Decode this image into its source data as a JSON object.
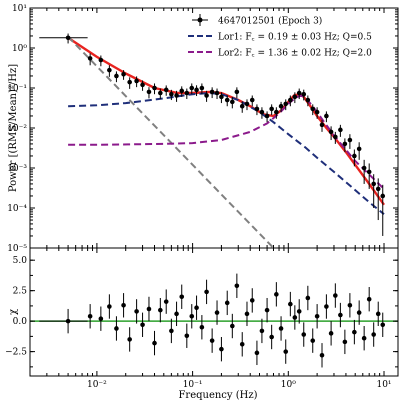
{
  "chart_data": [
    {
      "type": "scatter",
      "panel": "power spectrum",
      "xlabel": "Frequency (Hz)",
      "ylabel": "Power [(RMS/Mean)²/Hz]",
      "x_scale": "log",
      "y_scale": "log",
      "xlim": [
        0.002,
        14
      ],
      "ylim": [
        1e-05,
        10
      ],
      "x_ticks": [
        {
          "value": 0.01,
          "label": "10⁻²"
        },
        {
          "value": 0.1,
          "label": "10⁻¹"
        },
        {
          "value": 1,
          "label": "10⁰"
        },
        {
          "value": 10,
          "label": "10¹"
        }
      ],
      "y_ticks": [
        {
          "value": 10,
          "label": "10¹"
        },
        {
          "value": 1,
          "label": "10⁰"
        },
        {
          "value": 0.1,
          "label": "10⁻¹"
        },
        {
          "value": 0.01,
          "label": "10⁻²"
        },
        {
          "value": 0.001,
          "label": "10⁻³"
        },
        {
          "value": 0.0001,
          "label": "10⁻⁴"
        },
        {
          "value": 1e-05,
          "label": "10⁻⁵"
        }
      ],
      "legend": {
        "placement": "top-right",
        "entries": [
          {
            "label": "4647012501 (Epoch 3)",
            "style": "points",
            "color": "#000000"
          },
          {
            "label": "Lor1:  F꜀ = 0.19 ± 0.03 Hz;  Q=0.5",
            "style": "dashed",
            "color": "#1f2f7a"
          },
          {
            "label": "Lor2:  F꜀ = 1.36 ± 0.02 Hz;  Q=2.0",
            "style": "dashed",
            "color": "#8b1a8b"
          }
        ]
      },
      "series": [
        {
          "name": "4647012501 (Epoch 3)",
          "color": "#000000",
          "x": [
            0.005,
            0.0085,
            0.011,
            0.0135,
            0.016,
            0.019,
            0.022,
            0.026,
            0.03,
            0.035,
            0.04,
            0.046,
            0.053,
            0.06,
            0.068,
            0.077,
            0.087,
            0.098,
            0.11,
            0.125,
            0.14,
            0.16,
            0.18,
            0.2,
            0.23,
            0.26,
            0.29,
            0.33,
            0.37,
            0.42,
            0.47,
            0.53,
            0.6,
            0.67,
            0.75,
            0.84,
            0.94,
            1.05,
            1.17,
            1.3,
            1.45,
            1.6,
            1.8,
            2.0,
            2.25,
            2.5,
            2.8,
            3.1,
            3.5,
            3.9,
            4.4,
            4.9,
            5.5,
            6.2,
            7.0,
            7.8,
            8.7,
            9.7
          ],
          "y": [
            1.8,
            0.55,
            0.5,
            0.28,
            0.2,
            0.22,
            0.14,
            0.15,
            0.12,
            0.08,
            0.1,
            0.075,
            0.09,
            0.07,
            0.065,
            0.085,
            0.075,
            0.1,
            0.09,
            0.1,
            0.065,
            0.08,
            0.075,
            0.06,
            0.05,
            0.045,
            0.08,
            0.035,
            0.04,
            0.05,
            0.03,
            0.025,
            0.02,
            0.03,
            0.025,
            0.035,
            0.04,
            0.05,
            0.06,
            0.075,
            0.07,
            0.05,
            0.03,
            0.025,
            0.012,
            0.02,
            0.008,
            0.006,
            0.009,
            0.004,
            0.005,
            0.002,
            0.003,
            0.001,
            0.0008,
            0.0004,
            0.0003,
            0.0002
          ],
          "yerr": [
            0.5,
            0.18,
            0.15,
            0.09,
            0.06,
            0.06,
            0.045,
            0.045,
            0.035,
            0.025,
            0.03,
            0.022,
            0.026,
            0.02,
            0.02,
            0.025,
            0.022,
            0.03,
            0.027,
            0.03,
            0.02,
            0.024,
            0.022,
            0.018,
            0.015,
            0.014,
            0.024,
            0.011,
            0.012,
            0.015,
            0.009,
            0.008,
            0.006,
            0.009,
            0.008,
            0.01,
            0.012,
            0.015,
            0.018,
            0.022,
            0.021,
            0.015,
            0.009,
            0.008,
            0.004,
            0.006,
            0.003,
            0.002,
            0.003,
            0.0015,
            0.002,
            0.0009,
            0.0014,
            0.0006,
            0.0005,
            0.0003,
            0.00025,
            0.00018
          ],
          "xerr_first": [
            0.0025,
            0.008
          ]
        },
        {
          "name": "total model",
          "color": "#e8231f",
          "line": "solid",
          "x": [
            0.005,
            0.01,
            0.02,
            0.04,
            0.07,
            0.1,
            0.15,
            0.2,
            0.3,
            0.4,
            0.55,
            0.7,
            0.85,
            1.0,
            1.15,
            1.3,
            1.45,
            1.7,
            2.0,
            2.5,
            3.0,
            4.0,
            5.0,
            7.0,
            10.0
          ],
          "y": [
            1.8,
            0.6,
            0.23,
            0.1,
            0.075,
            0.075,
            0.08,
            0.075,
            0.05,
            0.035,
            0.022,
            0.02,
            0.028,
            0.045,
            0.065,
            0.07,
            0.06,
            0.035,
            0.02,
            0.01,
            0.006,
            0.0025,
            0.0012,
            0.0004,
            0.00012
          ]
        },
        {
          "name": "power-law component",
          "color": "#808080",
          "line": "dashed",
          "x": [
            0.005,
            0.7
          ],
          "y": [
            1.9,
            1e-05
          ]
        },
        {
          "name": "Lor1",
          "color": "#1f2f7a",
          "line": "dashed",
          "x": [
            0.005,
            0.01,
            0.02,
            0.05,
            0.1,
            0.15,
            0.2,
            0.3,
            0.5,
            0.7,
            1.0,
            1.5,
            2.0,
            3.0,
            5.0,
            7.0,
            10.0
          ],
          "y": [
            0.035,
            0.037,
            0.042,
            0.055,
            0.07,
            0.075,
            0.07,
            0.05,
            0.025,
            0.014,
            0.007,
            0.0033,
            0.0018,
            0.0008,
            0.00028,
            0.00014,
            7e-05
          ]
        },
        {
          "name": "Lor2",
          "color": "#8b1a8b",
          "line": "dashed",
          "x": [
            0.005,
            0.01,
            0.05,
            0.1,
            0.2,
            0.4,
            0.6,
            0.8,
            1.0,
            1.2,
            1.36,
            1.5,
            1.8,
            2.2,
            3.0,
            5.0,
            10.0
          ],
          "y": [
            0.0038,
            0.0038,
            0.004,
            0.0042,
            0.005,
            0.008,
            0.013,
            0.023,
            0.04,
            0.058,
            0.065,
            0.058,
            0.035,
            0.018,
            0.0065,
            0.0015,
            0.0003
          ]
        }
      ]
    },
    {
      "type": "scatter",
      "panel": "residuals",
      "xlabel": "Frequency (Hz)",
      "ylabel": "χ",
      "x_scale": "log",
      "xlim": [
        0.002,
        14
      ],
      "ylim": [
        -4.5,
        6
      ],
      "y_ticks": [
        {
          "value": 5,
          "label": "5.0"
        },
        {
          "value": 2.5,
          "label": "2.5"
        },
        {
          "value": 0,
          "label": "0.0"
        },
        {
          "value": -2.5,
          "label": "−2.5"
        }
      ],
      "zero_line": {
        "value": 0,
        "color": "#2ca02c"
      },
      "series": [
        {
          "name": "residuals",
          "color": "#000000",
          "x": [
            0.005,
            0.0085,
            0.011,
            0.0135,
            0.016,
            0.019,
            0.022,
            0.026,
            0.03,
            0.035,
            0.04,
            0.046,
            0.053,
            0.06,
            0.068,
            0.077,
            0.087,
            0.098,
            0.11,
            0.125,
            0.14,
            0.16,
            0.18,
            0.2,
            0.23,
            0.26,
            0.29,
            0.33,
            0.37,
            0.42,
            0.47,
            0.53,
            0.6,
            0.67,
            0.75,
            0.84,
            0.94,
            1.05,
            1.17,
            1.3,
            1.45,
            1.6,
            1.8,
            2.0,
            2.25,
            2.5,
            2.8,
            3.1,
            3.5,
            3.9,
            4.4,
            4.9,
            5.5,
            6.2,
            7.0,
            7.8,
            8.7,
            9.7
          ],
          "y": [
            0.0,
            0.4,
            0.2,
            1.2,
            -0.6,
            1.3,
            -1.5,
            0.8,
            -0.3,
            1.0,
            -1.8,
            0.9,
            1.6,
            -0.8,
            0.6,
            2.0,
            -1.2,
            0.4,
            1.1,
            -0.5,
            2.4,
            -1.6,
            0.7,
            -2.3,
            1.5,
            -0.4,
            2.9,
            -1.9,
            0.6,
            1.7,
            -2.6,
            -0.8,
            0.9,
            -1.3,
            2.2,
            -0.6,
            -2.5,
            1.4,
            0.3,
            0.8,
            -1.1,
            1.9,
            -1.6,
            0.4,
            -2.8,
            1.2,
            -1.0,
            2.1,
            0.5,
            -1.7,
            1.3,
            -0.9,
            0.7,
            -1.4,
            1.8,
            -1.1,
            0.6,
            -0.3
          ],
          "yerr": [
            1,
            1,
            1,
            1,
            1,
            1,
            1,
            1,
            1,
            1,
            1,
            1,
            1,
            1,
            1,
            1,
            1,
            1,
            1,
            1,
            1,
            1,
            1,
            1,
            1,
            1,
            1,
            1,
            1,
            1,
            1,
            1,
            1,
            1,
            1,
            1,
            1,
            1,
            1,
            1,
            1,
            1,
            1,
            1,
            1,
            1,
            1,
            1,
            1,
            1,
            1,
            1,
            1,
            1,
            1,
            1,
            1,
            1
          ]
        }
      ]
    }
  ]
}
